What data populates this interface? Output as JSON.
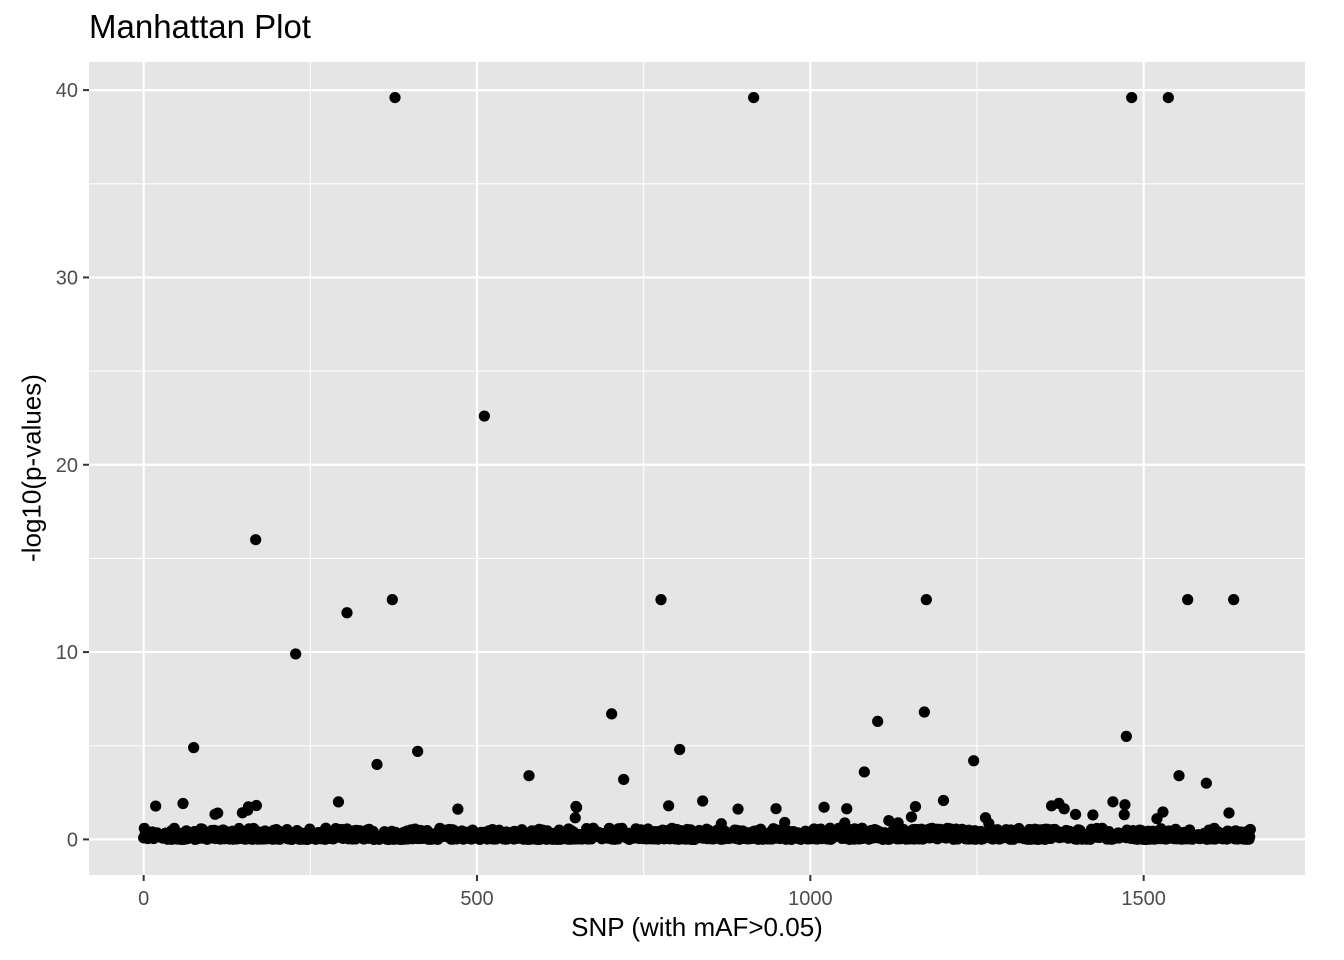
{
  "chart_data": {
    "type": "scatter",
    "title": "Manhattan Plot",
    "xlabel": "SNP (with mAF>0.05)",
    "ylabel": "-log10(p-values)",
    "xlim": [
      -82,
      1742
    ],
    "ylim": [
      -1.9,
      41.5
    ],
    "x_ticks": [
      0,
      500,
      1000,
      1500
    ],
    "y_ticks": [
      0,
      10,
      20,
      30,
      40
    ],
    "grid": true,
    "background": "#e5e5e5",
    "gridline_color": "#ffffff",
    "point_color": "#000000",
    "highlight_points": [
      {
        "x": 75,
        "y": 4.9
      },
      {
        "x": 168,
        "y": 16.0
      },
      {
        "x": 228,
        "y": 9.9
      },
      {
        "x": 305,
        "y": 12.1
      },
      {
        "x": 350,
        "y": 4.0
      },
      {
        "x": 373,
        "y": 12.8
      },
      {
        "x": 377,
        "y": 39.6
      },
      {
        "x": 411,
        "y": 4.7
      },
      {
        "x": 511,
        "y": 22.6
      },
      {
        "x": 578,
        "y": 3.4
      },
      {
        "x": 702,
        "y": 6.7
      },
      {
        "x": 720,
        "y": 3.2
      },
      {
        "x": 776,
        "y": 12.8
      },
      {
        "x": 804,
        "y": 4.8
      },
      {
        "x": 915,
        "y": 39.6
      },
      {
        "x": 1081,
        "y": 3.6
      },
      {
        "x": 1101,
        "y": 6.3
      },
      {
        "x": 1171,
        "y": 6.8
      },
      {
        "x": 1174,
        "y": 12.8
      },
      {
        "x": 1245,
        "y": 4.2
      },
      {
        "x": 1474,
        "y": 5.5
      },
      {
        "x": 1482,
        "y": 39.6
      },
      {
        "x": 1537,
        "y": 39.6
      },
      {
        "x": 1553,
        "y": 3.4
      },
      {
        "x": 1566,
        "y": 12.8
      },
      {
        "x": 1635,
        "y": 12.8
      },
      {
        "x": 1594,
        "y": 3.0
      }
    ],
    "baseline_points": {
      "count": 1660,
      "x_range": [
        0,
        1660
      ],
      "y_range": [
        0,
        2.7
      ],
      "note_visible": false
    }
  }
}
